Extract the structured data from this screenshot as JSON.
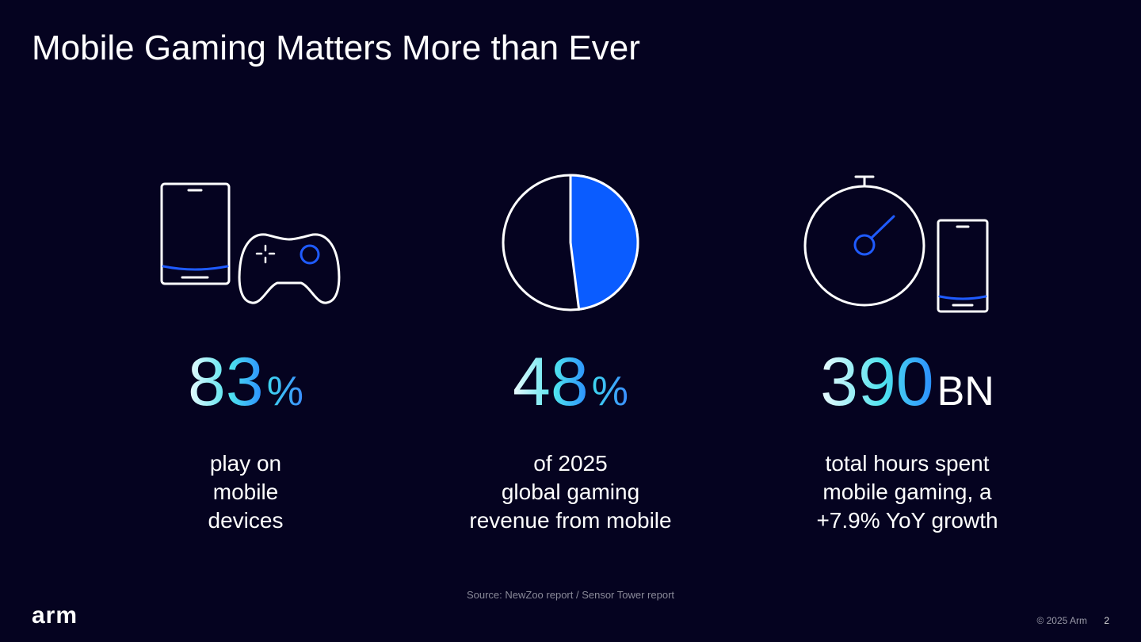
{
  "title": "Mobile Gaming Matters More than Ever",
  "stats": [
    {
      "value": 83,
      "unit": "%",
      "caption": [
        "play on",
        "mobile",
        "devices"
      ]
    },
    {
      "value": 48,
      "unit": "%",
      "caption": [
        "of 2025",
        "global gaming",
        "revenue from mobile"
      ]
    },
    {
      "value": 390,
      "unit": "BN",
      "caption": [
        "total hours spent",
        "mobile gaming, a",
        "+7.9% YoY growth"
      ]
    }
  ],
  "source": "Source: NewZoo report / Sensor Tower report",
  "footer": {
    "logo": "arm",
    "copyright": "© 2025 Arm",
    "page": "2"
  }
}
